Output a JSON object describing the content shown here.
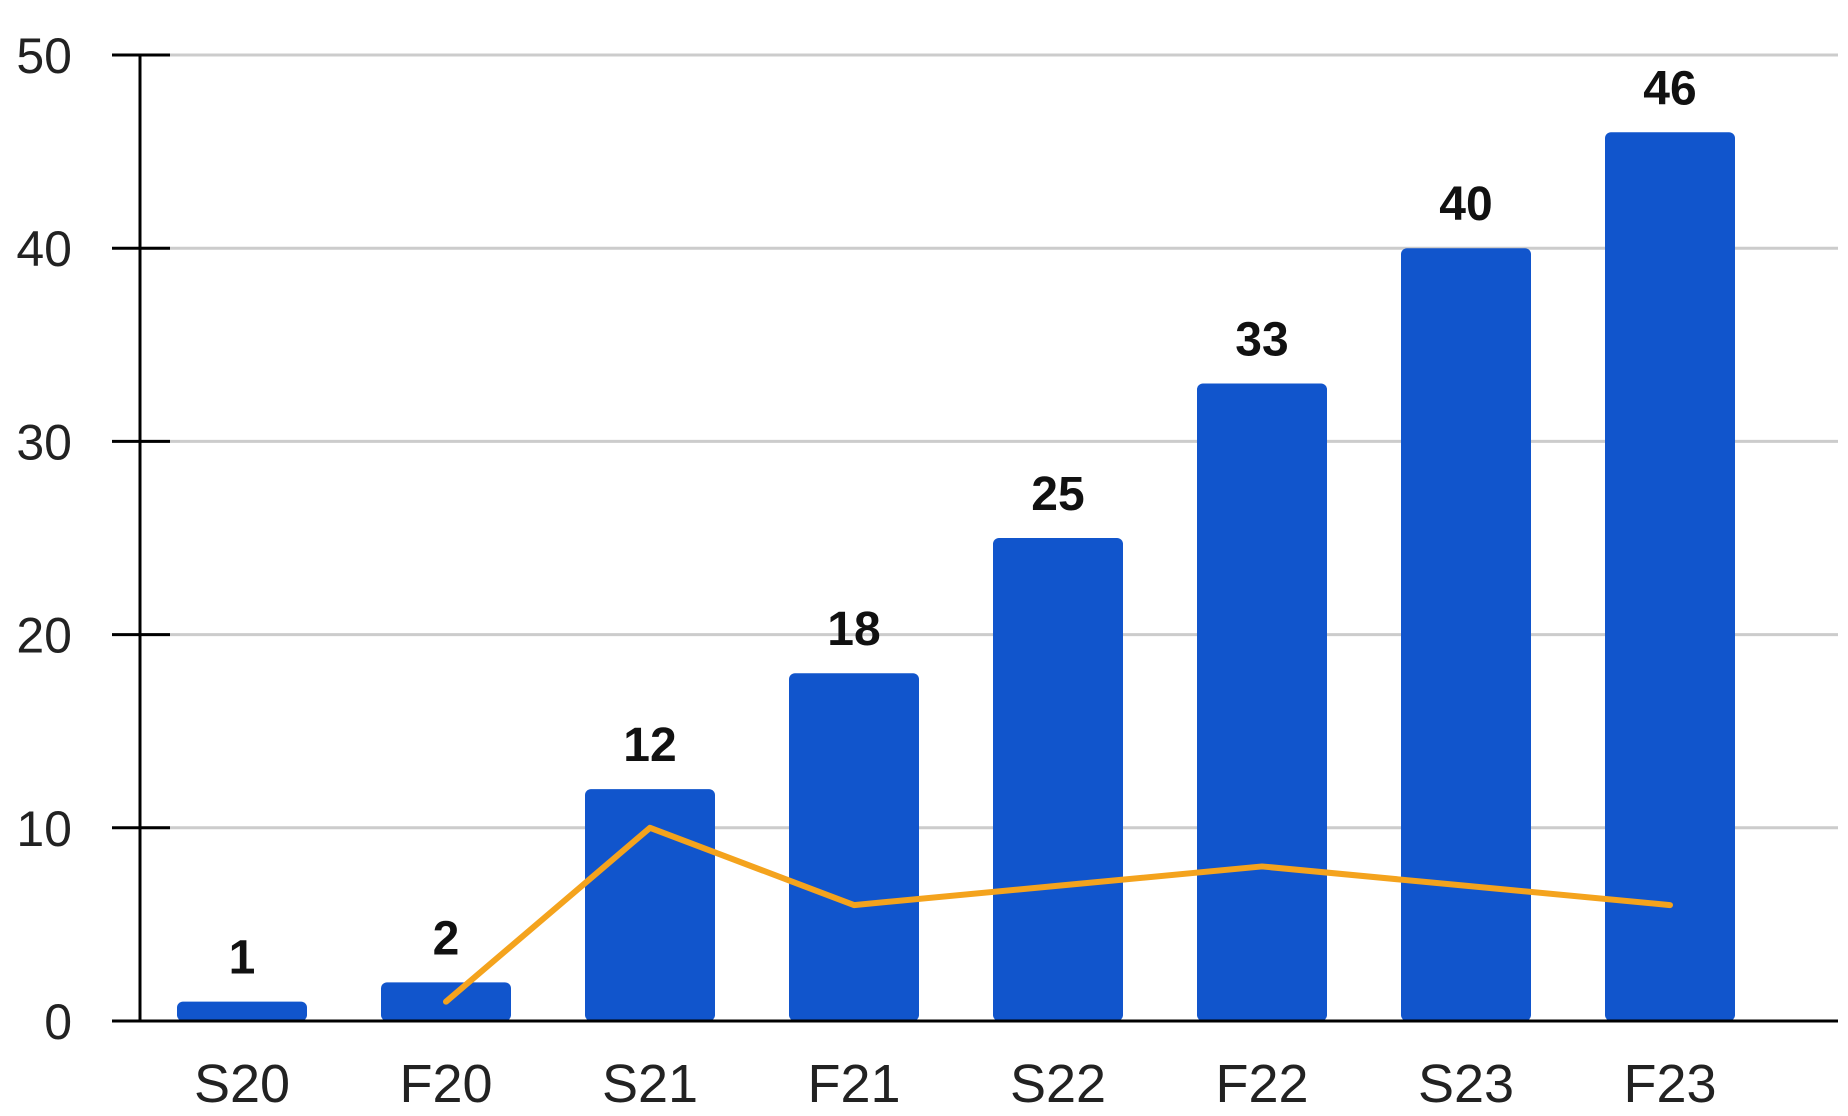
{
  "chart_data": {
    "type": "bar",
    "categories": [
      "S20",
      "F20",
      "S21",
      "F21",
      "S22",
      "F22",
      "S23",
      "F23"
    ],
    "series": [
      {
        "type": "bar",
        "values": [
          1,
          2,
          12,
          18,
          25,
          33,
          40,
          46
        ]
      },
      {
        "type": "line",
        "x": [
          "F20",
          "S21",
          "F21",
          "S22",
          "F22",
          "S23",
          "F23"
        ],
        "values": [
          1,
          10,
          6,
          7,
          8,
          7,
          6
        ]
      }
    ],
    "data_labels": [
      "1",
      "2",
      "12",
      "18",
      "25",
      "33",
      "40",
      "46"
    ],
    "y_ticks": [
      0,
      10,
      20,
      30,
      40,
      50
    ],
    "ylim": [
      0,
      50
    ],
    "grid": true,
    "legend": "none",
    "colors": {
      "bar": "#1155cc",
      "line": "#f4a31d",
      "grid": "#cccccc",
      "axis": "#000000"
    }
  }
}
